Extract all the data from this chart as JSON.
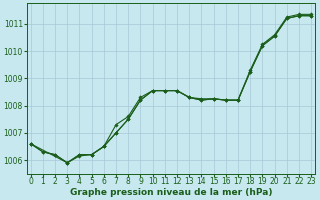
{
  "title": "Graphe pression niveau de la mer (hPa)",
  "s1_x": [
    0,
    1,
    2,
    3,
    4,
    5,
    6,
    7,
    8,
    9,
    10,
    11,
    12,
    13,
    14,
    15,
    16,
    17,
    18,
    19,
    20,
    21,
    22,
    23
  ],
  "s1_y": [
    1006.6,
    1006.3,
    1006.2,
    1005.9,
    1006.2,
    1006.2,
    1006.5,
    1007.0,
    1007.5,
    1008.2,
    1008.55,
    1008.55,
    1008.55,
    1008.3,
    1008.2,
    1008.25,
    1008.2,
    1008.2,
    1009.25,
    1010.2,
    1010.55,
    1011.2,
    1011.3,
    1011.3
  ],
  "s2_x": [
    0,
    1,
    2,
    3,
    4,
    5,
    6,
    7,
    8,
    9,
    10,
    11,
    12,
    13,
    14,
    15,
    16,
    17,
    18,
    19,
    20,
    21,
    22,
    23
  ],
  "s2_y": [
    1006.6,
    1006.3,
    1006.2,
    1005.9,
    1006.2,
    1006.2,
    1006.5,
    1007.3,
    1007.6,
    1008.3,
    1008.55,
    1008.55,
    1008.55,
    1008.3,
    1008.25,
    1008.25,
    1008.2,
    1008.2,
    1009.3,
    1010.25,
    1010.6,
    1011.25,
    1011.35,
    1011.35
  ],
  "s3_x": [
    0,
    3,
    4,
    5,
    6,
    7,
    8,
    9,
    10,
    11,
    12,
    13,
    14,
    15,
    16,
    17,
    18,
    19,
    20,
    21,
    22,
    23
  ],
  "s3_y": [
    1006.6,
    1005.9,
    1006.15,
    1006.2,
    1006.5,
    1007.0,
    1007.5,
    1008.2,
    1008.55,
    1008.55,
    1008.55,
    1008.3,
    1008.2,
    1008.25,
    1008.2,
    1008.2,
    1009.25,
    1010.2,
    1010.55,
    1011.2,
    1011.3,
    1011.3
  ],
  "ylim": [
    1005.5,
    1011.75
  ],
  "yticks": [
    1006,
    1007,
    1008,
    1009,
    1010,
    1011
  ],
  "xlim": [
    -0.3,
    23.3
  ],
  "bg_color": "#c8e8f0",
  "line_color": "#1a5e1a",
  "grid_color": "#a8c8d8",
  "label_color": "#1a5e1a",
  "title_fontsize": 6.5,
  "tick_fontsize": 5.5
}
